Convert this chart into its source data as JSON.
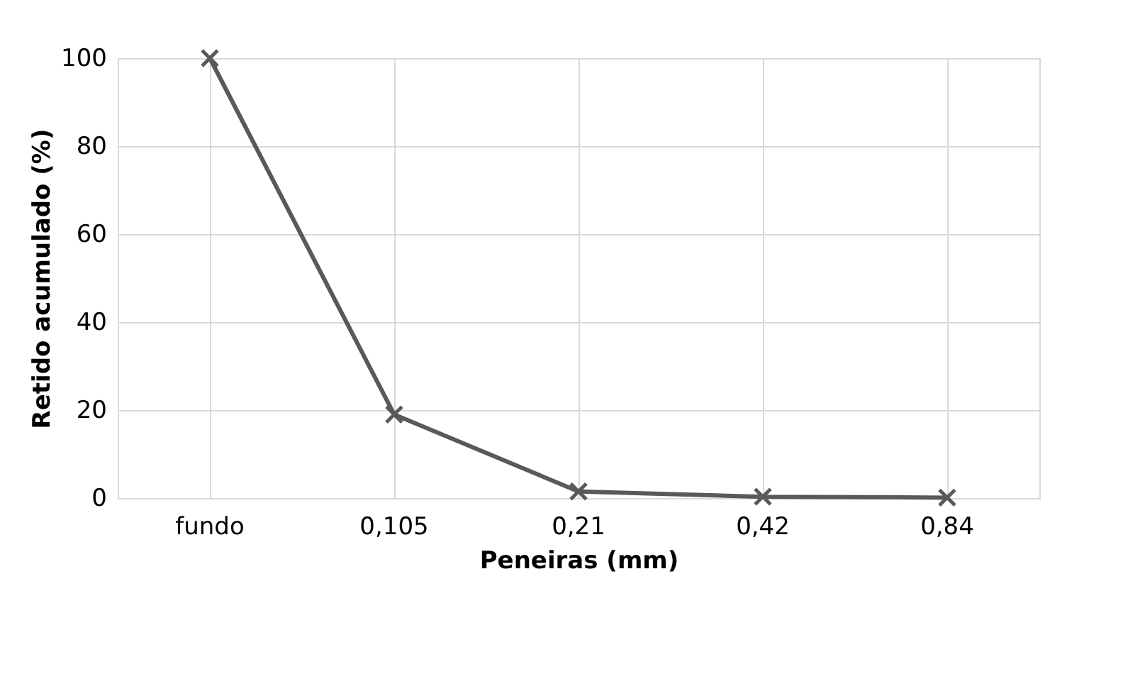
{
  "chart_data": {
    "type": "line",
    "xlabel": "Peneiras (mm)",
    "ylabel": "Retido acumulado (%)",
    "categories": [
      "fundo",
      "0,105",
      "0,21",
      "0,42",
      "0,84"
    ],
    "series": [
      {
        "color": "#595959",
        "values": [
          100,
          19,
          1.5,
          0.3,
          0.1
        ]
      }
    ],
    "ylim": [
      0,
      100
    ],
    "yticks": [
      0,
      20,
      40,
      60,
      80,
      100
    ],
    "grid": true,
    "marker": "cross",
    "line_style": "solid",
    "legend": false
  }
}
